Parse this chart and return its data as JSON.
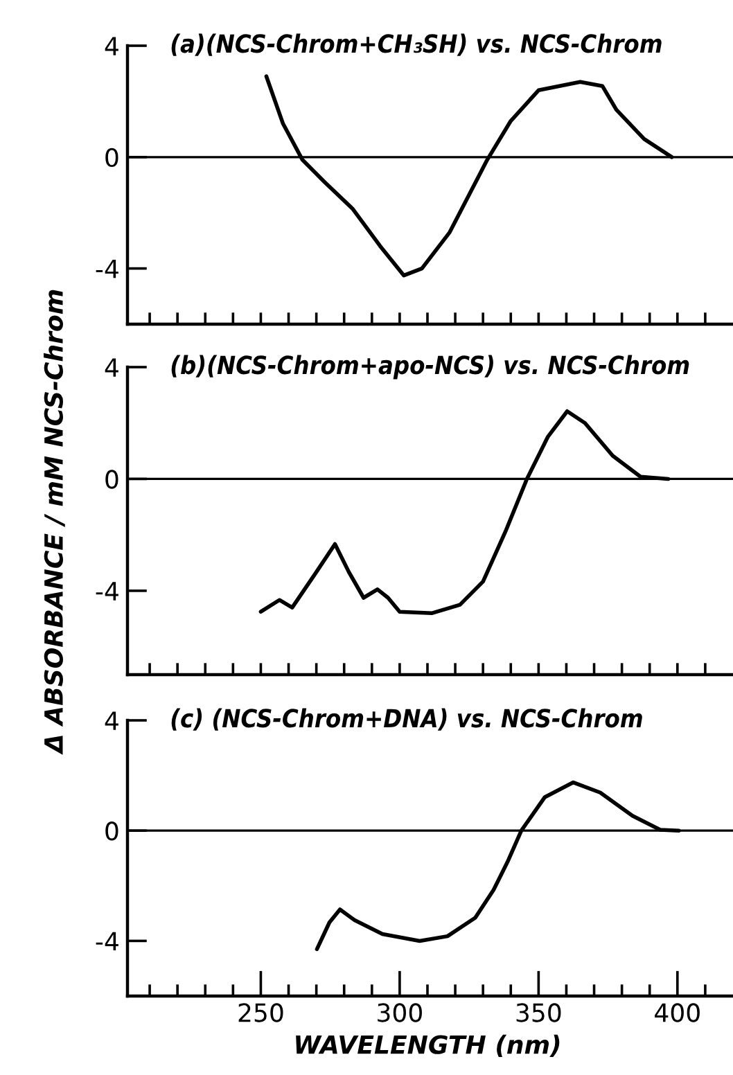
{
  "chart_data": [
    {
      "type": "line",
      "title": "(a)(NCS-Chrom+CH₃SH) vs. NCS-Chrom",
      "xlim": [
        202,
        420
      ],
      "ylim": [
        -6,
        4
      ],
      "yticks": [
        4,
        0,
        -4
      ],
      "tick_labels": "y",
      "xticks": [
        {
          "value": 210,
          "label": null
        },
        {
          "value": 220,
          "label": null
        },
        {
          "value": 230,
          "label": null
        },
        {
          "value": 240,
          "label": null
        },
        {
          "value": 250,
          "label": null
        },
        {
          "value": 260,
          "label": null
        },
        {
          "value": 270,
          "label": null
        },
        {
          "value": 280,
          "label": null
        },
        {
          "value": 290,
          "label": null
        },
        {
          "value": 300,
          "label": null
        },
        {
          "value": 310,
          "label": null
        },
        {
          "value": 320,
          "label": null
        },
        {
          "value": 330,
          "label": null
        },
        {
          "value": 340,
          "label": null
        },
        {
          "value": 350,
          "label": null
        },
        {
          "value": 360,
          "label": null
        },
        {
          "value": 370,
          "label": null
        },
        {
          "value": 380,
          "label": null
        },
        {
          "value": 390,
          "label": null
        },
        {
          "value": 400,
          "label": null
        },
        {
          "value": 410,
          "label": null
        }
      ],
      "ref_lines": [
        {
          "axis": "y",
          "value": 0,
          "label": null,
          "color": "#000000"
        }
      ],
      "series": [
        {
          "color": "#000000",
          "x": [
            252,
            258,
            265,
            273,
            283,
            293,
            301.5,
            308,
            318,
            331.5,
            340,
            350,
            365,
            373,
            378,
            388,
            398
          ],
          "values": [
            2.9,
            1.2,
            -0.1,
            -0.9,
            -1.85,
            -3.2,
            -4.25,
            -4.0,
            -2.7,
            -0.1,
            1.3,
            2.4,
            2.7,
            2.55,
            1.7,
            0.65,
            0
          ]
        }
      ]
    },
    {
      "type": "line",
      "title": "(b)(NCS-Chrom+apo-NCS) vs. NCS-Chrom",
      "ylabel": "Δ ABSORBANCE / mM NCS-Chrom",
      "xlim": [
        202,
        420
      ],
      "ylim": [
        -7,
        4
      ],
      "yticks": [
        4,
        0,
        -4
      ],
      "tick_labels": "y",
      "xticks": [
        {
          "value": 210,
          "label": null
        },
        {
          "value": 220,
          "label": null
        },
        {
          "value": 230,
          "label": null
        },
        {
          "value": 240,
          "label": null
        },
        {
          "value": 250,
          "label": null
        },
        {
          "value": 260,
          "label": null
        },
        {
          "value": 270,
          "label": null
        },
        {
          "value": 280,
          "label": null
        },
        {
          "value": 290,
          "label": null
        },
        {
          "value": 300,
          "label": null
        },
        {
          "value": 310,
          "label": null
        },
        {
          "value": 320,
          "label": null
        },
        {
          "value": 330,
          "label": null
        },
        {
          "value": 340,
          "label": null
        },
        {
          "value": 350,
          "label": null
        },
        {
          "value": 360,
          "label": null
        },
        {
          "value": 370,
          "label": null
        },
        {
          "value": 380,
          "label": null
        },
        {
          "value": 390,
          "label": null
        },
        {
          "value": 400,
          "label": null
        },
        {
          "value": 410,
          "label": null
        }
      ],
      "ref_lines": [
        {
          "axis": "y",
          "value": 0,
          "label": null,
          "color": "#000000"
        }
      ],
      "series": [
        {
          "color": "#000000",
          "x": [
            250,
            256.7,
            261.3,
            270,
            276.7,
            281.7,
            287,
            292,
            295.8,
            300,
            311.7,
            321.7,
            330,
            338.3,
            345.8,
            353.3,
            360.3,
            366.7,
            376.7,
            386.7,
            396.7
          ],
          "values": [
            -4.75,
            -4.33,
            -4.6,
            -3.33,
            -2.33,
            -3.33,
            -4.25,
            -3.95,
            -4.25,
            -4.75,
            -4.8,
            -4.5,
            -3.67,
            -1.83,
            0,
            1.5,
            2.42,
            2.0,
            0.83,
            0.08,
            0
          ]
        }
      ]
    },
    {
      "type": "line",
      "title": "(c) (NCS-Chrom+DNA) vs. NCS-Chrom",
      "xlabel": "WAVELENGTH (nm)",
      "xlim": [
        202,
        420
      ],
      "ylim": [
        -6,
        4
      ],
      "yticks": [
        4,
        0,
        -4
      ],
      "xticks": [
        {
          "value": 210,
          "label": null
        },
        {
          "value": 220,
          "label": null
        },
        {
          "value": 230,
          "label": null
        },
        {
          "value": 240,
          "label": null
        },
        250,
        {
          "value": 260,
          "label": null
        },
        {
          "value": 270,
          "label": null
        },
        {
          "value": 280,
          "label": null
        },
        {
          "value": 290,
          "label": null
        },
        300,
        {
          "value": 310,
          "label": null
        },
        {
          "value": 320,
          "label": null
        },
        {
          "value": 330,
          "label": null
        },
        {
          "value": 340,
          "label": null
        },
        350,
        {
          "value": 360,
          "label": null
        },
        {
          "value": 370,
          "label": null
        },
        {
          "value": 380,
          "label": null
        },
        {
          "value": 390,
          "label": null
        },
        400,
        {
          "value": 410,
          "label": null
        }
      ],
      "ref_lines": [
        {
          "axis": "y",
          "value": 0,
          "label": null,
          "color": "#000000"
        }
      ],
      "series": [
        {
          "color": "#000000",
          "x": [
            270.2,
            274.7,
            278.5,
            283.8,
            293.8,
            307.2,
            317.2,
            327.2,
            333.8,
            338.8,
            343.8,
            352.2,
            362.5,
            372.2,
            383.8,
            393.8,
            400.5
          ],
          "values": [
            -4.3,
            -3.33,
            -2.86,
            -3.25,
            -3.75,
            -4.0,
            -3.83,
            -3.16,
            -2.15,
            -1.14,
            0,
            1.21,
            1.75,
            1.38,
            0.54,
            0.03,
            0
          ]
        }
      ]
    }
  ]
}
